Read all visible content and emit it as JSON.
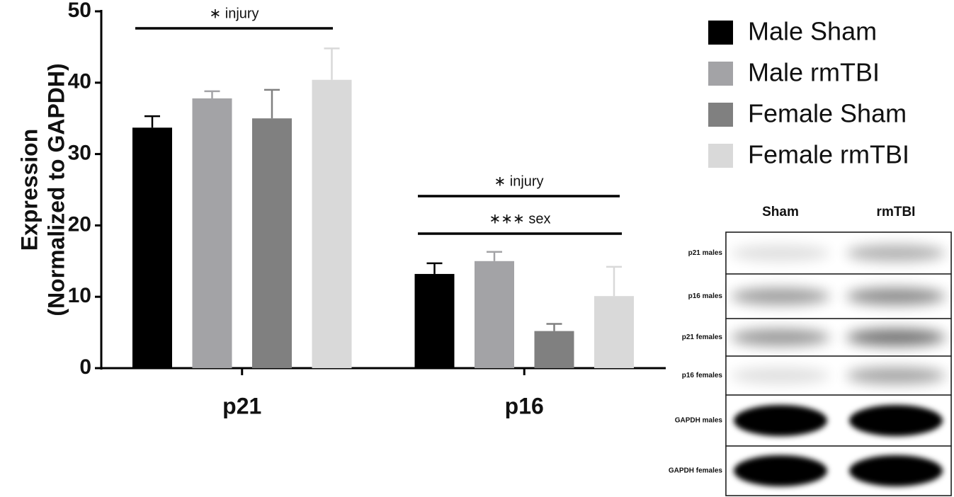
{
  "chart_data": {
    "type": "bar",
    "ylabel": [
      "Expression",
      "(Normalized to GAPDH)"
    ],
    "categories": [
      "p21",
      "p16"
    ],
    "series": [
      {
        "name": "Male Sham",
        "color": "#000000",
        "values": [
          33.7,
          13.2
        ],
        "errors": [
          1.6,
          1.5
        ]
      },
      {
        "name": "Male rmTBI",
        "color": "#a3a3a6",
        "values": [
          37.8,
          15.0
        ],
        "errors": [
          1.0,
          1.3
        ]
      },
      {
        "name": "Female Sham",
        "color": "#808080",
        "values": [
          35.0,
          5.2
        ],
        "errors": [
          4.0,
          1.0
        ]
      },
      {
        "name": "Female rmTBI",
        "color": "#d9d9d9",
        "values": [
          40.4,
          10.1
        ],
        "errors": [
          4.4,
          4.1
        ]
      }
    ],
    "ylim": [
      0,
      50
    ],
    "yticks": [
      0,
      10,
      20,
      30,
      40,
      50
    ],
    "annotations": [
      {
        "text": "∗ injury"
      },
      {
        "text": "∗ injury"
      },
      {
        "text": "∗∗∗ sex"
      }
    ]
  },
  "blot": {
    "columns": [
      "Sham",
      "rmTBI"
    ],
    "rows": [
      "p21 males",
      "p16 males",
      "p21 females",
      "p16 females",
      "GAPDH males",
      "GAPDH females"
    ]
  }
}
